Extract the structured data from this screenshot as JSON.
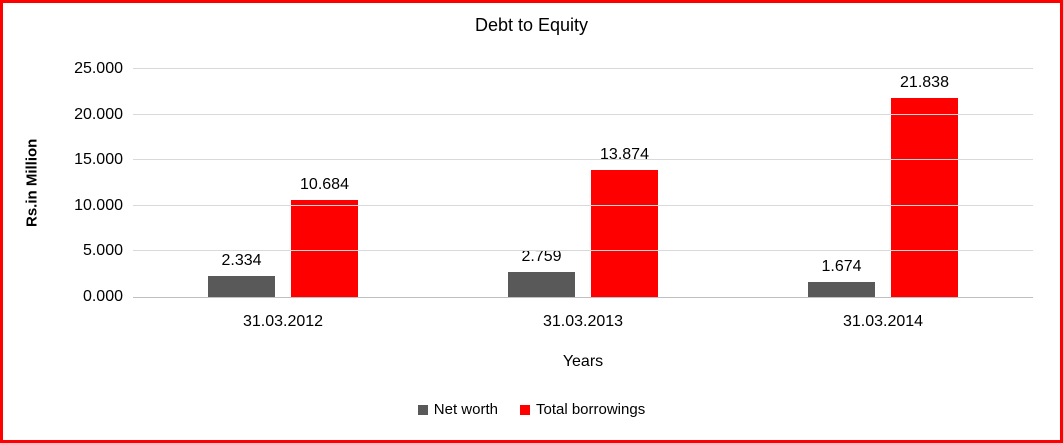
{
  "frame": {
    "border_color": "#FF0000",
    "background": "#FFFFFF"
  },
  "chart_data": {
    "type": "bar",
    "title": "Debt to Equity",
    "xlabel": "Years",
    "ylabel": "Rs.in Million",
    "categories": [
      "31.03.2012",
      "31.03.2013",
      "31.03.2014"
    ],
    "series": [
      {
        "name": "Net worth",
        "color": "#595959",
        "values": [
          2.334,
          2.759,
          1.674
        ],
        "labels": [
          "2.334",
          "2.759",
          "1.674"
        ]
      },
      {
        "name": "Total borrowings",
        "color": "#FF0000",
        "values": [
          10.684,
          13.874,
          21.838
        ],
        "labels": [
          "10.684",
          "13.874",
          "21.838"
        ]
      }
    ],
    "ylim": [
      0,
      25
    ],
    "ytick_labels": [
      "0.000",
      "5.000",
      "10.000",
      "15.000",
      "20.000",
      "25.000"
    ],
    "grid": true,
    "legend_position": "bottom",
    "colors": {
      "gridline": "#D9D9D9",
      "axis_line": "#BFBFBF",
      "text": "#000000"
    }
  }
}
